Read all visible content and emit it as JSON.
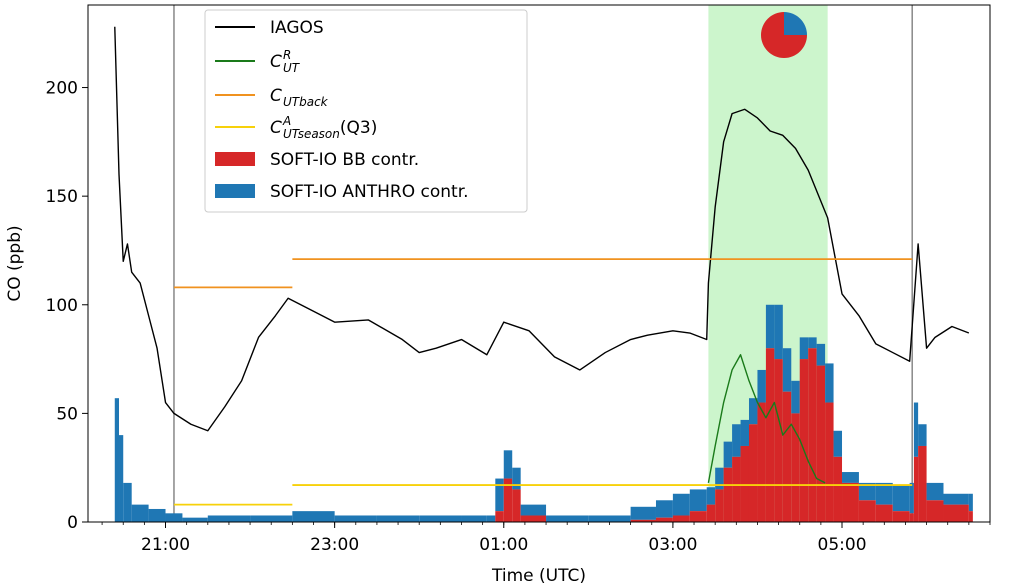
{
  "chart_data": {
    "type": "line",
    "title": "",
    "xlabel": "Time (UTC)",
    "ylabel": "CO (ppb)",
    "xlim": [
      "20:05",
      "06:45"
    ],
    "ylim": [
      0,
      238
    ],
    "x_ticks": [
      "21:00",
      "23:00",
      "01:00",
      "03:00",
      "05:00"
    ],
    "x_ticks_hours": [
      21,
      23,
      25,
      27,
      29
    ],
    "y_ticks": [
      0,
      50,
      100,
      150,
      200
    ],
    "legend_position": "top-left",
    "legend": [
      {
        "kind": "line",
        "color": "#000000",
        "text": "IAGOS"
      },
      {
        "kind": "line",
        "color": "#1a7a1a",
        "sym": "C",
        "sup": "R",
        "sub": "UT",
        "tail": ""
      },
      {
        "kind": "line",
        "color": "#f0921f",
        "sym": "C",
        "sup": "",
        "sub": "UTback",
        "tail": ""
      },
      {
        "kind": "line",
        "color": "#f7d10a",
        "sym": "C",
        "sup": "A",
        "sub": "UTseason",
        "tail": "(Q3)"
      },
      {
        "kind": "patch",
        "color": "#d62728",
        "text": "SOFT-IO BB contr."
      },
      {
        "kind": "patch",
        "color": "#1f77b4",
        "text": "SOFT-IO ANTHRO contr."
      }
    ],
    "highlight_region": {
      "x": [
        27.42,
        28.83
      ],
      "color": "#ccf5cc"
    },
    "vertical_lines": [
      {
        "x": 21.1,
        "color": "#888888"
      },
      {
        "x": 29.83,
        "color": "#888888"
      }
    ],
    "pie": {
      "position": "top-center",
      "values": [
        {
          "name": "BB",
          "value": 75,
          "color": "#d62728"
        },
        {
          "name": "ANTHRO",
          "value": 25,
          "color": "#1f77b4"
        }
      ]
    },
    "series": [
      {
        "name": "IAGOS",
        "color": "#000000",
        "x": [
          20.4,
          20.45,
          20.5,
          20.55,
          20.6,
          20.7,
          20.8,
          20.9,
          21.0,
          21.1,
          21.3,
          21.5,
          21.7,
          21.9,
          22.1,
          22.3,
          22.45,
          22.6,
          22.75,
          23.0,
          23.4,
          23.8,
          24.0,
          24.2,
          24.5,
          24.8,
          25.0,
          25.3,
          25.6,
          25.9,
          26.2,
          26.5,
          26.7,
          27.0,
          27.2,
          27.4,
          27.42,
          27.5,
          27.6,
          27.7,
          27.85,
          28.0,
          28.15,
          28.3,
          28.45,
          28.6,
          28.83,
          29.0,
          29.2,
          29.4,
          29.6,
          29.8,
          29.9,
          30.0,
          30.1,
          30.3,
          30.5
        ],
        "y": [
          228,
          160,
          120,
          128,
          115,
          110,
          95,
          80,
          55,
          50,
          45,
          42,
          53,
          65,
          85,
          95,
          103,
          100,
          97,
          92,
          93,
          84,
          78,
          80,
          84,
          77,
          92,
          88,
          76,
          70,
          78,
          84,
          86,
          88,
          87,
          84,
          110,
          145,
          175,
          188,
          190,
          186,
          180,
          178,
          172,
          162,
          140,
          105,
          95,
          82,
          78,
          74,
          128,
          80,
          85,
          90,
          87
        ]
      },
      {
        "name": "",
        "color": "#1a7a1a",
        "x": [
          27.42,
          27.5,
          27.6,
          27.7,
          27.8,
          27.9,
          28.0,
          28.1,
          28.2,
          28.3,
          28.4,
          28.5,
          28.6,
          28.7,
          28.8
        ],
        "y": [
          18,
          35,
          55,
          70,
          77,
          65,
          55,
          48,
          55,
          40,
          45,
          38,
          28,
          20,
          18
        ]
      },
      {
        "name": "",
        "color": "#f0921f",
        "segments": [
          {
            "x": [
              21.1,
              22.5
            ],
            "y": [
              108,
              108
            ]
          },
          {
            "x": [
              22.5,
              29.83
            ],
            "y": [
              121,
              121
            ]
          }
        ]
      },
      {
        "name": "",
        "color": "#f7d10a",
        "segments": [
          {
            "x": [
              21.1,
              22.5
            ],
            "y": [
              8,
              8
            ]
          },
          {
            "x": [
              22.5,
              29.83
            ],
            "y": [
              17,
              17
            ]
          }
        ]
      }
    ],
    "stacked_bars": {
      "bb_color": "#d62728",
      "anthro_color": "#1f77b4",
      "x": [
        20.4,
        20.45,
        20.5,
        20.6,
        20.8,
        21.0,
        21.2,
        21.5,
        22.0,
        22.5,
        23.0,
        23.5,
        24.0,
        24.5,
        24.8,
        24.9,
        25.0,
        25.1,
        25.2,
        25.5,
        26.0,
        26.5,
        26.8,
        27.0,
        27.2,
        27.4,
        27.5,
        27.6,
        27.7,
        27.8,
        27.9,
        28.0,
        28.1,
        28.2,
        28.3,
        28.4,
        28.5,
        28.6,
        28.7,
        28.8,
        28.9,
        29.0,
        29.2,
        29.4,
        29.6,
        29.8,
        29.85,
        29.9,
        30.0,
        30.2,
        30.5
      ],
      "bb": [
        0,
        0,
        0,
        0,
        0,
        0,
        0,
        0,
        0,
        0,
        0,
        0,
        0,
        0,
        0,
        5,
        20,
        15,
        3,
        0,
        0,
        1,
        2,
        3,
        5,
        8,
        15,
        25,
        30,
        35,
        45,
        55,
        80,
        75,
        60,
        50,
        75,
        80,
        72,
        55,
        30,
        18,
        10,
        8,
        5,
        4,
        30,
        35,
        10,
        8,
        5
      ],
      "anthro": [
        57,
        40,
        18,
        8,
        6,
        4,
        2,
        3,
        3,
        5,
        3,
        3,
        3,
        3,
        3,
        15,
        13,
        10,
        5,
        3,
        3,
        6,
        8,
        10,
        10,
        8,
        10,
        12,
        15,
        12,
        12,
        15,
        20,
        25,
        20,
        15,
        10,
        5,
        10,
        18,
        12,
        5,
        8,
        10,
        12,
        14,
        25,
        10,
        8,
        5,
        8
      ]
    }
  }
}
